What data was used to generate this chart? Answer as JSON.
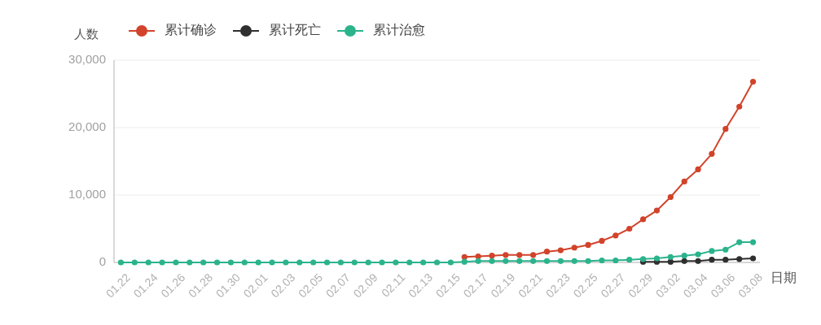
{
  "chart_data": {
    "type": "line",
    "ylabel": "人数",
    "xlabel": "日期",
    "categories": [
      "01.22",
      null,
      "01.24",
      null,
      "01.26",
      null,
      "01.28",
      null,
      "01.30",
      null,
      "02.01",
      null,
      "02.03",
      null,
      "02.05",
      null,
      "02.07",
      null,
      "02.09",
      null,
      "02.11",
      null,
      "02.13",
      null,
      "02.15",
      null,
      "02.17",
      null,
      "02.19",
      null,
      "02.21",
      null,
      "02.23",
      null,
      "02.25",
      null,
      "02.27",
      null,
      "02.29",
      null,
      "03.02",
      null,
      "03.04",
      null,
      "03.06",
      null,
      "03.08"
    ],
    "series": [
      {
        "name": "累计确诊",
        "color": "#d1432a",
        "values": [
          null,
          null,
          null,
          null,
          null,
          null,
          null,
          null,
          null,
          null,
          null,
          null,
          null,
          null,
          null,
          null,
          null,
          null,
          null,
          null,
          null,
          null,
          null,
          null,
          null,
          800,
          900,
          1000,
          1100,
          1100,
          1100,
          1600,
          1800,
          2200,
          2600,
          3200,
          4000,
          5000,
          6400,
          7700,
          9700,
          12000,
          13800,
          16100,
          19800,
          23100,
          26800
        ]
      },
      {
        "name": "累计死亡",
        "color": "#2f2f2f",
        "values": [
          null,
          null,
          null,
          null,
          null,
          null,
          null,
          null,
          null,
          null,
          null,
          null,
          null,
          null,
          null,
          null,
          null,
          null,
          null,
          null,
          null,
          null,
          null,
          null,
          null,
          null,
          null,
          null,
          null,
          null,
          null,
          null,
          null,
          null,
          null,
          null,
          null,
          null,
          100,
          100,
          100,
          200,
          200,
          400,
          400,
          500,
          600
        ]
      },
      {
        "name": "累计治愈",
        "color": "#2bb38c",
        "values": [
          0,
          0,
          0,
          0,
          0,
          0,
          0,
          0,
          0,
          0,
          0,
          0,
          0,
          0,
          0,
          0,
          0,
          0,
          0,
          0,
          0,
          0,
          0,
          0,
          0,
          100,
          200,
          200,
          200,
          200,
          200,
          200,
          200,
          200,
          200,
          300,
          300,
          400,
          500,
          600,
          800,
          1000,
          1200,
          1700,
          1900,
          3000,
          3000
        ]
      }
    ],
    "ylim": [
      0,
      30000
    ],
    "yticks": [
      0,
      {
        "value": 10000,
        "label": "10,000"
      },
      {
        "value": 20000,
        "label": "20,000"
      },
      {
        "value": 30000,
        "label": "30,000"
      }
    ],
    "grid": "y",
    "legend": "top",
    "marker": "circle",
    "line_style": "solid"
  }
}
